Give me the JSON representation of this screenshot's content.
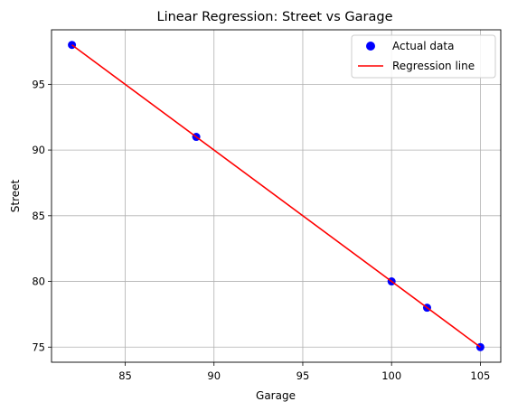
{
  "chart_data": {
    "type": "scatter",
    "title": "Linear Regression: Street vs Garage",
    "xlabel": "Garage",
    "ylabel": "Street",
    "xlim": [
      80.85,
      106.15
    ],
    "ylim": [
      73.85,
      99.15
    ],
    "xticks": [
      85,
      90,
      95,
      100,
      105
    ],
    "yticks": [
      75,
      80,
      85,
      90,
      95
    ],
    "grid": true,
    "legend_position": "top-right",
    "series": [
      {
        "name": "Actual data",
        "kind": "scatter",
        "color": "#0000ff",
        "x": [
          82,
          89,
          100,
          102,
          105
        ],
        "y": [
          98,
          91,
          80,
          78,
          75
        ]
      },
      {
        "name": "Regression line",
        "kind": "line",
        "color": "#ff0000",
        "x": [
          82,
          105
        ],
        "y": [
          98,
          75
        ]
      }
    ]
  }
}
